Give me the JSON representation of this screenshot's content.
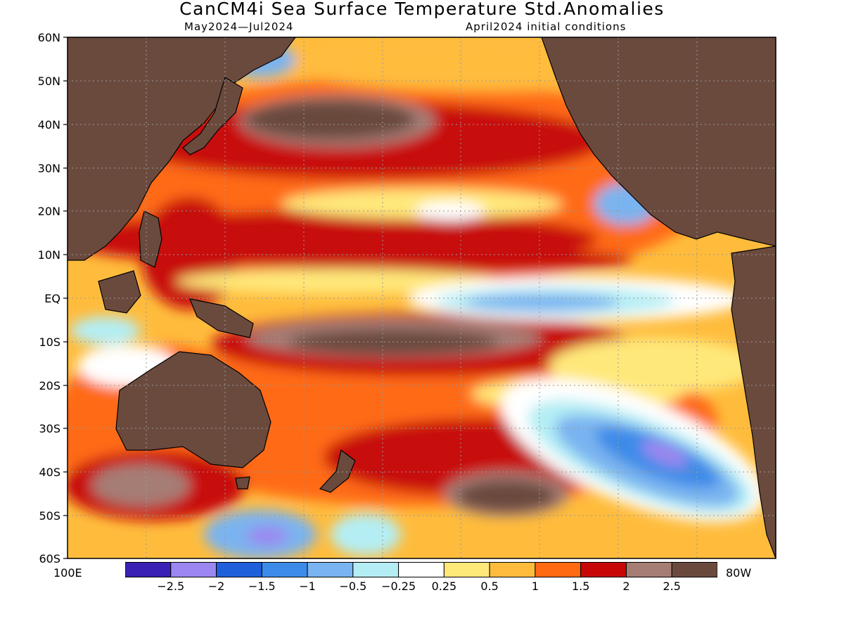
{
  "title": "CanCM4i Sea Surface Temperature Std.Anomalies",
  "subtitle_left": "May2024—Jul2024",
  "subtitle_right": "April2024 initial conditions",
  "lat_labels": [
    "60N",
    "50N",
    "40N",
    "30N",
    "20N",
    "10N",
    "EQ",
    "10S",
    "20S",
    "30S",
    "40S",
    "50S",
    "60S"
  ],
  "lon_labels": {
    "left": "100E",
    "right": "80W"
  },
  "colorbar": {
    "colors": [
      "#3a20b4",
      "#9c87f0",
      "#1f5fdc",
      "#3d8be8",
      "#7ab4f0",
      "#b4eef4",
      "#ffffff",
      "#ffe87a",
      "#ffbc3c",
      "#ff6a12",
      "#c80808",
      "#a57d74",
      "#6b4a3e"
    ],
    "tick_labels": [
      "-2.5",
      "-2",
      "-1.5",
      "-1",
      "-0.5",
      "-0.25",
      "0.25",
      "0.5",
      "1",
      "1.5",
      "2",
      "2.5"
    ]
  },
  "land_color": "#6b4a3e"
}
